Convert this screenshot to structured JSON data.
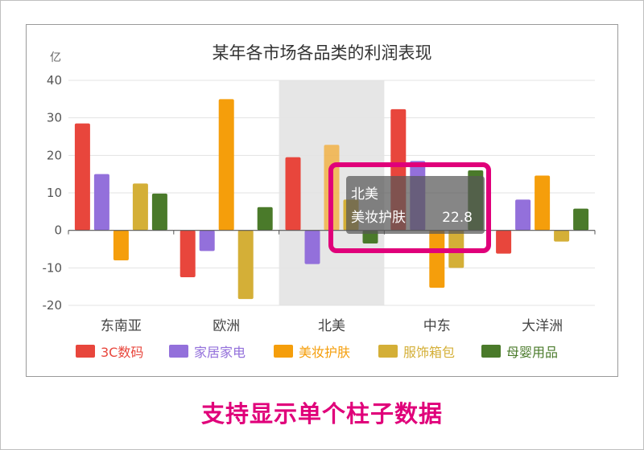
{
  "caption": "支持显示单个柱子数据",
  "chart_data": {
    "type": "bar",
    "title": "某年各市场各品类的利润表现",
    "ylabel": "亿",
    "ylim": [
      -20,
      40
    ],
    "yticks": [
      -20,
      -10,
      0,
      10,
      20,
      30,
      40
    ],
    "categories": [
      "东南亚",
      "欧洲",
      "北美",
      "中东",
      "大洋洲"
    ],
    "grid": true,
    "legend_position": "bottom",
    "series": [
      {
        "name": "3C数码",
        "color": "#e8463c",
        "values": [
          28.5,
          -12.5,
          19.5,
          32.3,
          -6.2
        ]
      },
      {
        "name": "家居家电",
        "color": "#9370db",
        "values": [
          15.0,
          -5.5,
          -9.0,
          18.5,
          8.2
        ]
      },
      {
        "name": "美妆护肤",
        "color": "#f59e0b",
        "values": [
          -8.0,
          35.0,
          22.8,
          -15.3,
          14.6
        ]
      },
      {
        "name": "服饰箱包",
        "color": "#d4af37",
        "values": [
          12.5,
          -18.3,
          8.2,
          -10.0,
          -3.0
        ]
      },
      {
        "name": "母婴用品",
        "color": "#4a7a2a",
        "values": [
          9.8,
          6.2,
          -3.5,
          16.0,
          5.8
        ]
      }
    ],
    "highlight": {
      "category": "北美",
      "series_index": 2
    },
    "tooltip": {
      "title": "北美",
      "label": "美妆护肤",
      "value": "22.8"
    }
  }
}
